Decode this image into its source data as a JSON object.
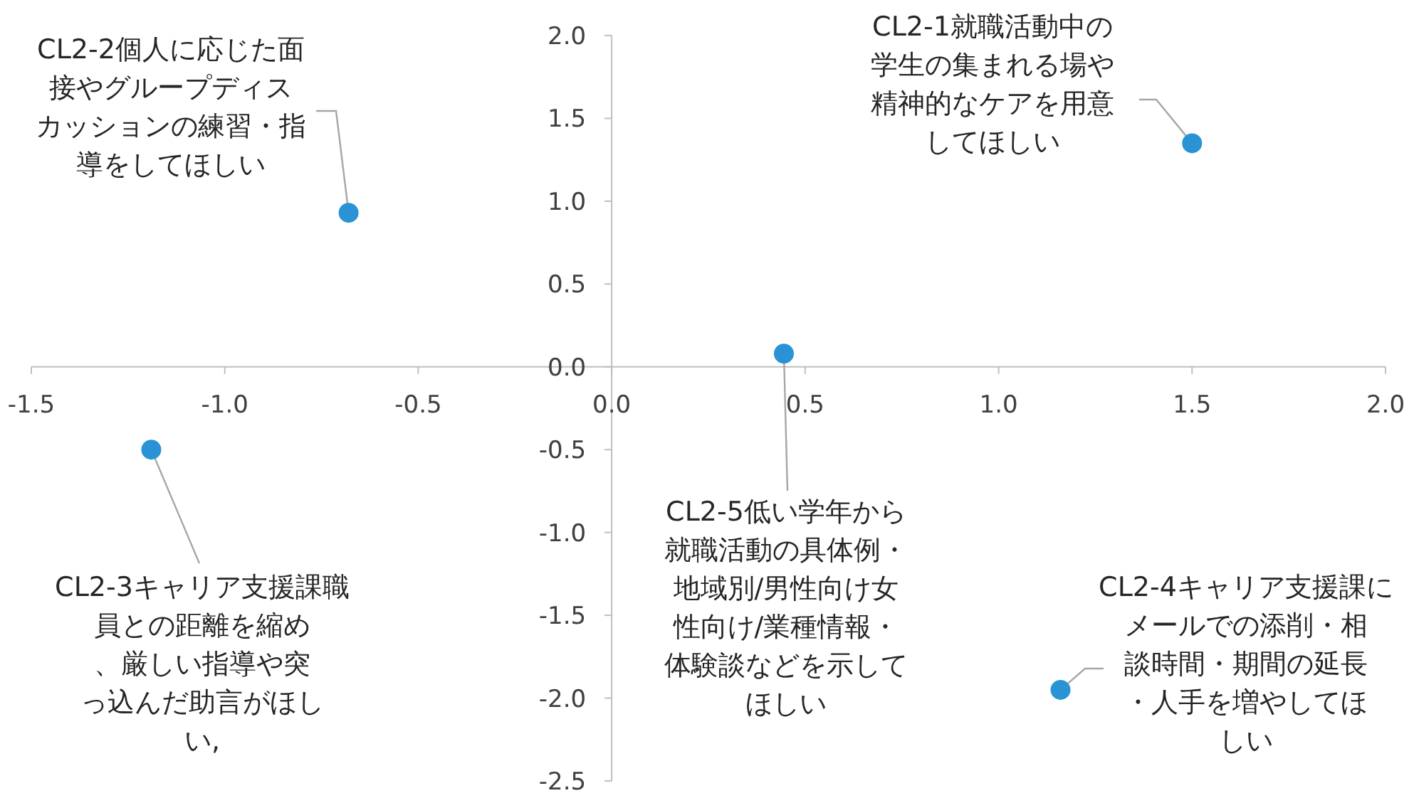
{
  "chart_data": {
    "type": "scatter",
    "x": [
      1.5,
      -0.68,
      -1.19,
      1.16,
      0.445
    ],
    "values": [
      1.35,
      0.93,
      -0.5,
      -1.95,
      0.08
    ],
    "color": "#2a93d5",
    "marker": "circle",
    "grid": false,
    "xlim": [
      -1.5,
      2.0
    ],
    "ylim": [
      -2.5,
      2.0
    ],
    "xticks": [
      {
        "value": -1.5,
        "label": "-1.5"
      },
      {
        "value": -1,
        "label": "-1.0"
      },
      {
        "value": -0.5,
        "label": "-0.5"
      },
      {
        "value": 0,
        "label": "0.0"
      },
      {
        "value": 0.5,
        "label": "0.5"
      },
      {
        "value": 1,
        "label": "1.0"
      },
      {
        "value": 1.5,
        "label": "1.5"
      },
      {
        "value": 2,
        "label": "2.0"
      }
    ],
    "yticks": [
      {
        "value": -2.5,
        "label": "-2.5"
      },
      {
        "value": -2,
        "label": "-2.0"
      },
      {
        "value": -1.5,
        "label": "-1.5"
      },
      {
        "value": -1,
        "label": "-1.0"
      },
      {
        "value": -0.5,
        "label": "-0.5"
      },
      {
        "value": 0,
        "label": "0.0"
      },
      {
        "value": 0.5,
        "label": "0.5"
      },
      {
        "value": 1,
        "label": "1.0"
      },
      {
        "value": 1.5,
        "label": "1.5"
      },
      {
        "value": 2,
        "label": "2.0"
      }
    ],
    "annotations": [
      {
        "text": "CL2-1就職活動中の学生の集まれる場や精神的なケアを用意してほしい",
        "x": 1.5,
        "y": 1.35
      },
      {
        "text": "CL2-2個人に応じた面接やグループディスカッションの練習・指導をしてほしい",
        "x": -0.68,
        "y": 0.93
      },
      {
        "text": "CL2-3キャリア支援課職員との距離を縮め、厳しい指導や突っ込んだ助言がほしい,",
        "x": -1.19,
        "y": -0.5
      },
      {
        "text": "CL2-4キャリア支援課にメールでの添削・相談時間・期間の延長・人手を増やしてほしい",
        "x": 1.16,
        "y": -1.95
      },
      {
        "text": "CL2-5低い学年から就職活動の具体例・地域別/男性向け女性向け/業種情報・体験談などを示してほしい",
        "x": 0.445,
        "y": 0.08
      }
    ]
  }
}
